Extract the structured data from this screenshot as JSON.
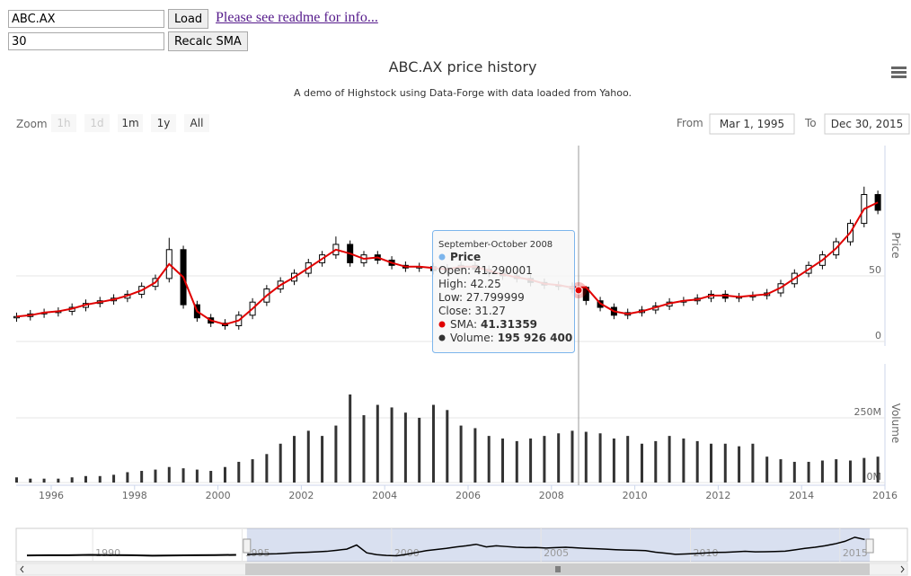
{
  "controls": {
    "symbol": "ABC.AX",
    "load": "Load",
    "readme": "Please see readme for info...",
    "sma_period": "30",
    "recalc": "Recalc SMA"
  },
  "chart_data": {
    "type": "candlestick",
    "title": "ABC.AX price history",
    "subtitle": "A demo of Highstock using Data-Forge with data loaded from Yahoo.",
    "range_selector": {
      "zoom": "Zoom",
      "buttons": [
        "1h",
        "1d",
        "1m",
        "1y",
        "All"
      ],
      "enabled": [
        false,
        false,
        true,
        true,
        true
      ],
      "from_label": "From",
      "from": "Mar 1, 1995",
      "to_label": "To",
      "to": "Dec 30, 2015"
    },
    "x": [
      1995.17,
      1995.5,
      1995.83,
      1996.17,
      1996.5,
      1996.83,
      1997.17,
      1997.5,
      1997.83,
      1998.17,
      1998.5,
      1998.83,
      1999.17,
      1999.5,
      1999.83,
      2000.17,
      2000.5,
      2000.83,
      2001.17,
      2001.5,
      2001.83,
      2002.17,
      2002.5,
      2002.83,
      2003.17,
      2003.5,
      2003.83,
      2004.17,
      2004.5,
      2004.83,
      2005.17,
      2005.5,
      2005.83,
      2006.17,
      2006.5,
      2006.83,
      2007.17,
      2007.5,
      2007.83,
      2008.17,
      2008.5,
      2008.83,
      2009.17,
      2009.5,
      2009.83,
      2010.17,
      2010.5,
      2010.83,
      2011.17,
      2011.5,
      2011.83,
      2012.17,
      2012.5,
      2012.83,
      2013.17,
      2013.5,
      2013.83,
      2014.17,
      2014.5,
      2014.83,
      2015.17,
      2015.5,
      2015.83
    ],
    "xlim": [
      1995.16,
      2016
    ],
    "xticks": [
      1996,
      1998,
      2000,
      2002,
      2004,
      2006,
      2008,
      2010,
      2012,
      2014,
      2016
    ],
    "series": [
      {
        "open": [
          18,
          19,
          21,
          22,
          23,
          26,
          29,
          31,
          33,
          36,
          42,
          48,
          70,
          28,
          18,
          14,
          12,
          20,
          30,
          40,
          46,
          52,
          60,
          66,
          74,
          60,
          66,
          62,
          58,
          56,
          57,
          54,
          56,
          58,
          55,
          52,
          50,
          48,
          45,
          43,
          42,
          41.290001,
          31,
          26,
          20,
          22,
          24,
          27,
          30,
          31,
          33,
          36,
          33,
          34,
          35,
          37,
          44,
          52,
          58,
          66,
          76,
          90,
          112
        ],
        "high": [
          22,
          24,
          25,
          26,
          29,
          32,
          34,
          36,
          39,
          45,
          51,
          79,
          73,
          31,
          21,
          17,
          23,
          33,
          43,
          49,
          55,
          63,
          69,
          80,
          77,
          69,
          69,
          65,
          61,
          60,
          60,
          59,
          61,
          61,
          58,
          55,
          53,
          51,
          48,
          46,
          45,
          42.25,
          34,
          29,
          25,
          27,
          30,
          33,
          34,
          36,
          39,
          39,
          37,
          38,
          40,
          47,
          55,
          61,
          69,
          79,
          93,
          118,
          115
        ],
        "low": [
          15,
          16,
          18,
          19,
          20,
          23,
          26,
          28,
          30,
          33,
          39,
          45,
          25,
          15,
          11,
          9,
          9,
          17,
          27,
          37,
          43,
          49,
          57,
          63,
          57,
          57,
          59,
          55,
          53,
          53,
          51,
          51,
          53,
          52,
          49,
          47,
          45,
          42,
          40,
          39,
          37,
          27.799999,
          23,
          17,
          17,
          19,
          21,
          24,
          27,
          28,
          30,
          30,
          30,
          31,
          32,
          34,
          41,
          49,
          55,
          63,
          73,
          87,
          97
        ],
        "close": [
          19,
          21,
          22,
          23,
          26,
          29,
          31,
          33,
          36,
          42,
          48,
          70,
          28,
          18,
          14,
          12,
          20,
          30,
          40,
          46,
          52,
          60,
          66,
          74,
          60,
          66,
          62,
          58,
          56,
          57,
          54,
          56,
          58,
          55,
          52,
          50,
          48,
          45,
          43,
          42,
          40,
          31.27,
          26,
          20,
          22,
          24,
          27,
          30,
          31,
          33,
          36,
          33,
          34,
          35,
          37,
          44,
          52,
          58,
          66,
          76,
          90,
          112,
          100
        ]
      },
      {
        "color": "#e00000",
        "values": [
          19,
          20,
          22,
          23,
          25,
          28,
          30,
          32,
          35,
          39,
          45,
          59,
          49,
          23,
          16,
          13,
          16,
          25,
          35,
          43,
          49,
          56,
          63,
          70,
          67,
          63,
          64,
          60,
          57,
          57,
          56,
          55,
          57,
          57,
          54,
          51,
          49,
          47,
          44,
          43,
          41,
          41.31359,
          29,
          23,
          21,
          23,
          26,
          29,
          31,
          32,
          35,
          35,
          34,
          35,
          36,
          41,
          48,
          55,
          62,
          71,
          83,
          101,
          106
        ]
      },
      {
        "axis": "y2",
        "color": "#333333",
        "values": [
          20000000,
          15000000,
          15000000,
          15000000,
          20000000,
          25000000,
          25000000,
          30000000,
          40000000,
          45000000,
          50000000,
          60000000,
          55000000,
          50000000,
          45000000,
          60000000,
          80000000,
          90000000,
          110000000,
          150000000,
          180000000,
          200000000,
          180000000,
          220000000,
          340000000,
          260000000,
          300000000,
          290000000,
          270000000,
          250000000,
          300000000,
          280000000,
          220000000,
          210000000,
          180000000,
          170000000,
          160000000,
          170000000,
          180000000,
          190000000,
          200000000,
          195926400,
          190000000,
          170000000,
          180000000,
          150000000,
          160000000,
          180000000,
          170000000,
          160000000,
          150000000,
          150000000,
          140000000,
          150000000,
          100000000,
          90000000,
          80000000,
          80000000,
          85000000,
          90000000,
          85000000,
          95000000,
          100000000
        ]
      }
    ],
    "y_title": "Price",
    "ylim": [
      0,
      150
    ],
    "yticks": [
      0,
      50
    ],
    "y2_title": "Volume",
    "y2lim": [
      0,
      458000000
    ],
    "y2ticks": [
      {
        "value": 0,
        "label": "0M"
      },
      {
        "value": 250000000,
        "label": "250M"
      }
    ],
    "tooltip": {
      "date": "September-October 2008",
      "name": "Price",
      "open": "Open: 41.290001",
      "high": "High: 42.25",
      "low": "Low: 27.799999",
      "close": "Close: 31.27",
      "sma_label": "SMA:",
      "sma": "41.31359",
      "volume_label": "Volume:",
      "volume": "195 926 400"
    },
    "navigator": {
      "xlim": [
        1987.44,
        2017.26
      ],
      "xticks": [
        1990,
        1995,
        2000,
        2005,
        2010,
        2015
      ],
      "x": [
        1987.8,
        1988.5,
        1989.2,
        1989.9,
        1990.6,
        1991.3,
        1992,
        1992.7,
        1993.4,
        1994.1,
        1994.8
      ],
      "values": [
        14,
        15,
        15,
        17,
        16,
        15,
        13,
        14,
        15,
        16,
        17
      ]
    }
  }
}
